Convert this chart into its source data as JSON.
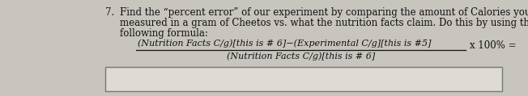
{
  "item_number": "7.",
  "body_text_line1": "Find the “percent error” of our experiment by comparing the amount of Calories you had",
  "body_text_line2": "measured in a gram of Cheetos vs. what the nutrition facts claim. Do this by using the",
  "body_text_line3": "following formula:",
  "numerator": "(Nutrition Facts C/g)[this is # 6]−(Experimental C/g][this is #5]",
  "denominator": "(Nutrition Facts C/g)[this is # 6]",
  "suffix": "x 100% =",
  "bg_color": "#c8c4be",
  "text_color": "#111111",
  "box_facecolor": "#dedad4",
  "box_edgecolor": "#777777",
  "font_size_body": 8.5,
  "font_size_formula": 8.0,
  "fig_width": 6.52,
  "fig_height": 1.19,
  "dpi": 100
}
